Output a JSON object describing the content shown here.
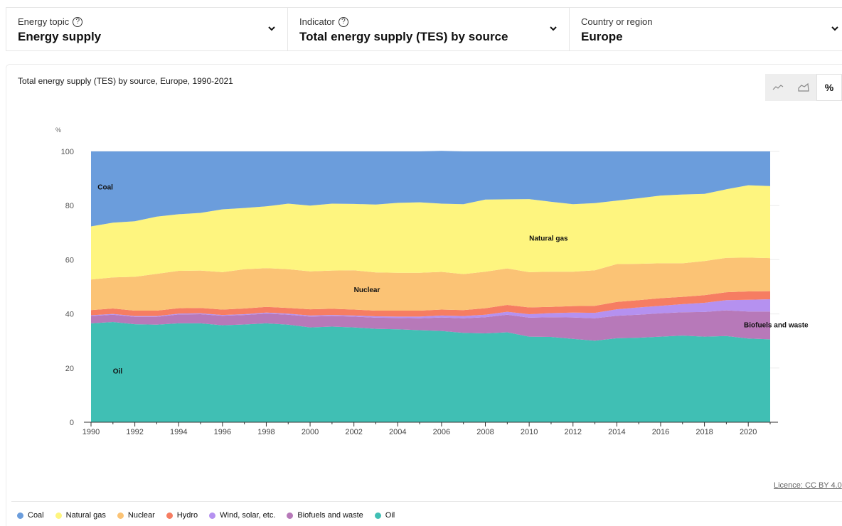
{
  "selectors": [
    {
      "label": "Energy topic",
      "has_help": true,
      "value": "Energy supply"
    },
    {
      "label": "Indicator",
      "has_help": true,
      "value": "Total energy supply (TES) by source"
    },
    {
      "label": "Country or region",
      "has_help": false,
      "value": "Europe"
    }
  ],
  "help_glyph": "?",
  "chart_title": "Total energy supply (TES) by source, Europe, 1990-2021",
  "view_toggle": {
    "options": [
      "line-chart-icon",
      "area-chart-icon",
      "%"
    ],
    "active": "%"
  },
  "licence": "Licence: CC BY 4.0",
  "chart_data": {
    "type": "area",
    "stacked": true,
    "normalized": true,
    "ylabel": "%",
    "ylim": [
      0,
      100
    ],
    "yticks": [
      0,
      20,
      40,
      60,
      80,
      100
    ],
    "xlim": [
      1990,
      2021
    ],
    "xticks": [
      1990,
      1992,
      1994,
      1996,
      1998,
      2000,
      2002,
      2004,
      2006,
      2008,
      2010,
      2012,
      2014,
      2016,
      2018,
      2020
    ],
    "grid": true,
    "legend_position": "bottom",
    "x": [
      1990,
      1991,
      1992,
      1993,
      1994,
      1995,
      1996,
      1997,
      1998,
      1999,
      2000,
      2001,
      2002,
      2003,
      2004,
      2005,
      2006,
      2007,
      2008,
      2009,
      2010,
      2011,
      2012,
      2013,
      2014,
      2015,
      2016,
      2017,
      2018,
      2019,
      2020,
      2021
    ],
    "series": [
      {
        "name": "Oil",
        "color": "#40bfb4",
        "label": "Oil",
        "label_at": [
          1991,
          18
        ],
        "values": [
          36.5,
          37.0,
          36.2,
          36.0,
          36.5,
          36.5,
          35.8,
          36.1,
          36.5,
          36.0,
          35.0,
          35.3,
          35.0,
          34.5,
          34.3,
          34.0,
          33.7,
          33.0,
          32.8,
          33.2,
          31.6,
          31.5,
          30.8,
          30.1,
          31.0,
          31.2,
          31.6,
          32.0,
          31.6,
          31.8,
          30.9,
          30.6
        ]
      },
      {
        "name": "Biofuels and waste",
        "color": "#b779b9",
        "label": "Biofuels and waste",
        "label_at": [
          2019.8,
          35
        ],
        "values": [
          2.7,
          2.7,
          2.7,
          2.9,
          3.3,
          3.4,
          3.5,
          3.5,
          3.6,
          3.7,
          4.0,
          3.9,
          4.0,
          4.1,
          4.2,
          4.4,
          5.0,
          5.4,
          6.0,
          6.5,
          7.0,
          7.3,
          7.9,
          8.3,
          8.3,
          8.5,
          8.6,
          8.6,
          9.1,
          9.5,
          10.0,
          10.3
        ]
      },
      {
        "name": "Wind, solar, etc.",
        "color": "#b591f0",
        "values": [
          0.3,
          0.3,
          0.3,
          0.3,
          0.3,
          0.3,
          0.3,
          0.3,
          0.4,
          0.4,
          0.4,
          0.4,
          0.4,
          0.5,
          0.5,
          0.6,
          0.7,
          0.8,
          0.9,
          1.1,
          1.3,
          1.5,
          1.8,
          2.0,
          2.4,
          2.7,
          2.8,
          3.0,
          3.4,
          3.8,
          4.3,
          4.5
        ]
      },
      {
        "name": "Hydro",
        "color": "#f67d62",
        "values": [
          1.9,
          2.0,
          2.0,
          2.0,
          2.0,
          2.0,
          2.0,
          2.1,
          2.1,
          2.1,
          2.3,
          2.3,
          2.2,
          2.1,
          2.2,
          2.2,
          2.2,
          2.2,
          2.4,
          2.5,
          2.5,
          2.3,
          2.4,
          2.6,
          2.7,
          2.7,
          2.8,
          2.7,
          2.8,
          2.9,
          3.1,
          3.0
        ]
      },
      {
        "name": "Nuclear",
        "color": "#fbc375",
        "label": "Nuclear",
        "label_at": [
          2002,
          48
        ],
        "values": [
          11.3,
          11.5,
          12.5,
          13.6,
          13.8,
          13.8,
          13.8,
          14.5,
          14.3,
          14.3,
          14.0,
          14.1,
          14.5,
          14.1,
          14.0,
          14.0,
          13.9,
          13.3,
          13.5,
          13.5,
          13.0,
          13.0,
          12.7,
          13.1,
          14.0,
          13.4,
          12.9,
          12.4,
          12.6,
          12.7,
          12.5,
          12.2
        ]
      },
      {
        "name": "Natural gas",
        "color": "#fef57f",
        "label": "Natural gas",
        "label_at": [
          2010,
          67
        ],
        "values": [
          19.6,
          20.2,
          20.5,
          21.1,
          20.9,
          21.3,
          23.2,
          22.6,
          22.8,
          24.2,
          24.3,
          24.7,
          24.5,
          25.1,
          25.8,
          26.0,
          25.2,
          25.8,
          26.6,
          25.5,
          27.0,
          25.8,
          24.9,
          24.8,
          23.4,
          24.2,
          25.0,
          25.4,
          24.8,
          25.3,
          26.7,
          26.6
        ]
      },
      {
        "name": "Coal",
        "color": "#6b9ddc",
        "label": "Coal",
        "label_at": [
          1990.3,
          86
        ],
        "values": [
          27.7,
          26.3,
          25.8,
          24.1,
          23.2,
          22.7,
          21.4,
          20.9,
          20.3,
          19.3,
          20.0,
          19.3,
          19.4,
          19.6,
          19.0,
          18.8,
          19.5,
          19.5,
          17.8,
          17.7,
          17.6,
          18.6,
          19.5,
          19.1,
          18.2,
          17.3,
          16.3,
          15.9,
          15.7,
          14.0,
          12.5,
          12.8
        ]
      }
    ]
  }
}
